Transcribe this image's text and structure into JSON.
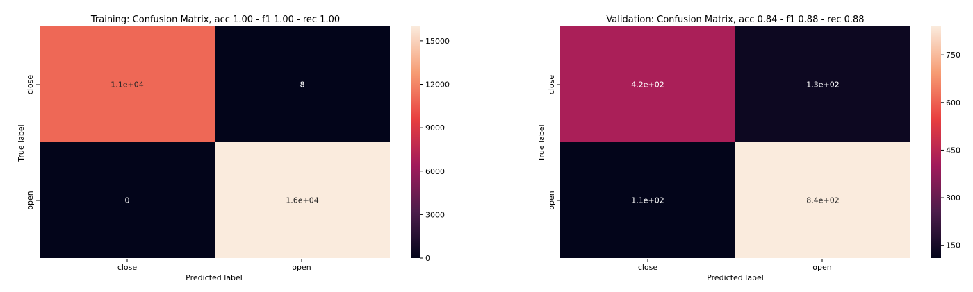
{
  "colormap": [
    "#03051a",
    "#4c1d4b",
    "#a11a5b",
    "#e83f3f",
    "#f69c73",
    "#faebdd"
  ],
  "chart_data": [
    {
      "type": "heatmap",
      "title": "Training: Confusion Matrix, acc 1.00 - f1 1.00 - rec 1.00",
      "xlabel": "Predicted label",
      "ylabel": "True label",
      "x_categories": [
        "close",
        "open"
      ],
      "y_categories": [
        "close",
        "open"
      ],
      "values": [
        [
          11000,
          8
        ],
        [
          0,
          16000
        ]
      ],
      "annotations": [
        [
          "1.1e+04",
          "8"
        ],
        [
          "0",
          "1.6e+04"
        ]
      ],
      "colorbar_range": [
        0,
        16000
      ],
      "colorbar_ticks": [
        0,
        3000,
        6000,
        9000,
        12000,
        15000
      ],
      "colorbar_tick_labels": [
        "0",
        "3000",
        "6000",
        "9000",
        "12000",
        "15000"
      ]
    },
    {
      "type": "heatmap",
      "title": "Validation: Confusion Matrix, acc 0.84 - f1 0.88 - rec 0.88",
      "xlabel": "Predicted label",
      "ylabel": "True label",
      "x_categories": [
        "close",
        "open"
      ],
      "y_categories": [
        "close",
        "open"
      ],
      "values": [
        [
          420,
          130
        ],
        [
          110,
          840
        ]
      ],
      "annotations": [
        [
          "4.2e+02",
          "1.3e+02"
        ],
        [
          "1.1e+02",
          "8.4e+02"
        ]
      ],
      "colorbar_range": [
        110,
        840
      ],
      "colorbar_ticks": [
        150,
        300,
        450,
        600,
        750
      ],
      "colorbar_tick_labels": [
        "150",
        "300",
        "450",
        "600",
        "750"
      ]
    }
  ]
}
